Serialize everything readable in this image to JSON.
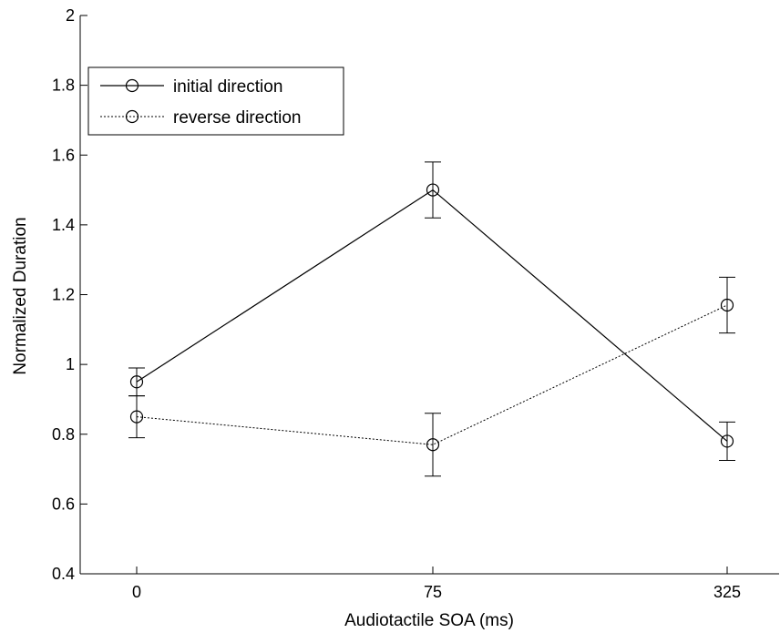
{
  "chart_data": {
    "type": "line",
    "title": "",
    "xlabel": "Audiotactile SOA (ms)",
    "ylabel": "Normalized Duration",
    "categories": [
      "0",
      "75",
      "325"
    ],
    "ylim": [
      0.4,
      2
    ],
    "yticks": [
      "0.4",
      "0.6",
      "0.8",
      "1",
      "1.2",
      "1.4",
      "1.6",
      "1.8",
      "2"
    ],
    "grid": false,
    "legend_position": "top-left",
    "series": [
      {
        "name": "initial direction",
        "values": [
          0.95,
          1.5,
          0.78
        ],
        "error": [
          0.04,
          0.08,
          0.055
        ],
        "line_style": "solid",
        "marker": "circle",
        "color": "#000000"
      },
      {
        "name": "reverse direction",
        "values": [
          0.85,
          0.77,
          1.17
        ],
        "error": [
          0.06,
          0.09,
          0.08
        ],
        "line_style": "dotted",
        "marker": "circle",
        "color": "#000000"
      }
    ]
  }
}
